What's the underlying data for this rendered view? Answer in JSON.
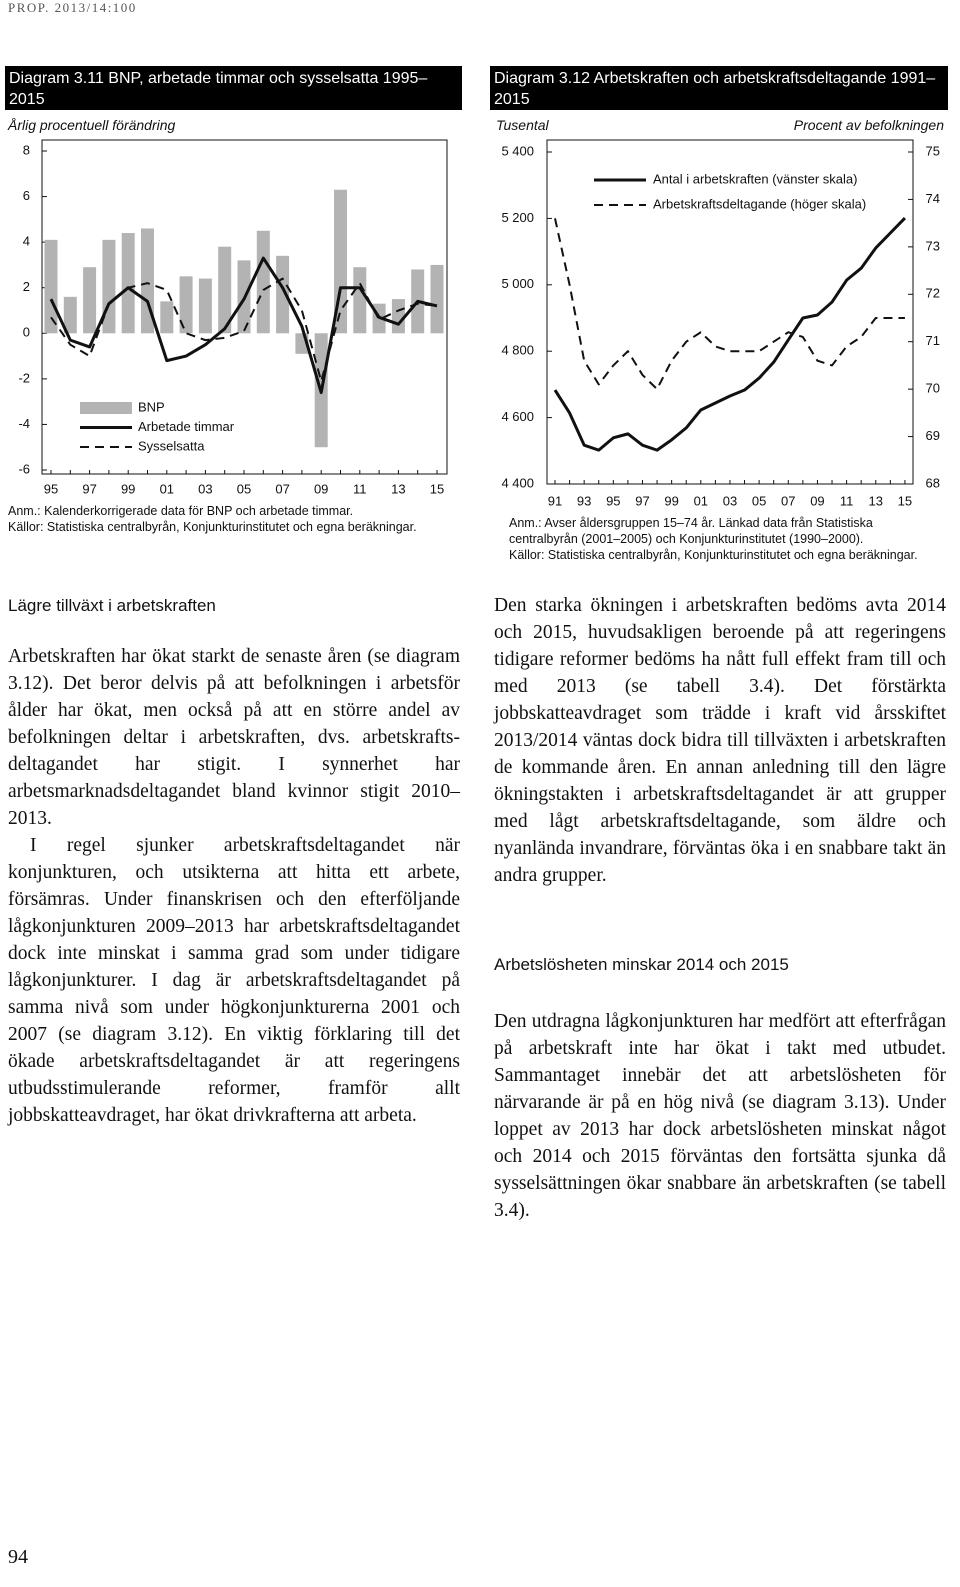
{
  "header": "PROP. 2013/14:100",
  "page_number": "94",
  "chart_data": [
    {
      "type": "bar_line",
      "title": "Diagram 3.11 BNP, arbetade timmar och sysselsatta 1995–2015",
      "subtitle": "Årlig procentuell förändring",
      "categories": [
        "95",
        null,
        "97",
        null,
        "99",
        null,
        "01",
        null,
        "03",
        null,
        "05",
        null,
        "07",
        null,
        "09",
        null,
        "11",
        null,
        "13",
        null,
        "15"
      ],
      "series": [
        {
          "name": "BNP",
          "kind": "bar",
          "color": "#b3b3b3",
          "values": [
            4.1,
            1.6,
            2.9,
            4.1,
            4.4,
            4.6,
            1.4,
            2.5,
            2.4,
            3.8,
            3.2,
            4.5,
            3.4,
            -0.9,
            -5.0,
            6.3,
            2.9,
            1.3,
            1.5,
            2.8,
            3.0
          ]
        },
        {
          "name": "Arbetade timmar",
          "kind": "line",
          "dash": false,
          "color": "#111111",
          "values": [
            1.5,
            -0.3,
            -0.6,
            1.3,
            2.0,
            1.4,
            -1.2,
            -1.0,
            -0.5,
            0.2,
            1.5,
            3.3,
            2.0,
            0.3,
            -2.6,
            2.0,
            2.0,
            0.7,
            0.4,
            1.4,
            1.2
          ]
        },
        {
          "name": "Sysselsatta",
          "kind": "line",
          "dash": true,
          "color": "#111111",
          "values": [
            0.7,
            -0.5,
            -1.0,
            1.3,
            2.0,
            2.2,
            1.9,
            0.0,
            -0.3,
            -0.2,
            0.1,
            1.9,
            2.4,
            1.0,
            -2.1,
            1.0,
            2.2,
            0.6,
            1.0,
            1.3,
            1.2
          ]
        }
      ],
      "ylim": [
        -6,
        8
      ],
      "yticks": [
        -6,
        -4,
        -2,
        0,
        2,
        4,
        6,
        8
      ],
      "legend": "lower left",
      "notes": [
        "Anm.: Kalenderkorrigerade data för BNP och arbetade timmar.",
        "Källor: Statistiska centralbyrån, Konjunkturinstitutet och egna beräkningar."
      ]
    },
    {
      "type": "line",
      "title": "Diagram 3.12 Arbetskraften och arbetskraftsdeltagande 1991–2015",
      "y_label": "Tusental",
      "y2_label": "Procent av befolkningen",
      "categories": [
        "91",
        null,
        "93",
        null,
        "95",
        null,
        "97",
        null,
        "99",
        null,
        "01",
        null,
        "03",
        null,
        "05",
        null,
        "07",
        null,
        "09",
        null,
        "11",
        null,
        "13",
        null,
        "15"
      ],
      "series": [
        {
          "name": "Antal i arbetskraften (vänster skala)",
          "dash": false,
          "color": "#111111",
          "values": [
            4683,
            4614,
            4517,
            4502,
            4539,
            4551,
            4517,
            4502,
            4533,
            4569,
            4623,
            4644,
            4665,
            4683,
            4719,
            4767,
            4834,
            4900,
            4909,
            4948,
            5014,
            5050,
            5111,
            5156,
            5201
          ]
        },
        {
          "name": "Arbetskraftsdeltagande (höger skala)",
          "axis": "y2",
          "dash": true,
          "color": "#111111",
          "values": [
            73.6,
            72.2,
            70.6,
            70.1,
            70.5,
            70.8,
            70.3,
            70.0,
            70.6,
            71.0,
            71.2,
            70.9,
            70.8,
            70.8,
            70.8,
            71.0,
            71.2,
            71.1,
            70.6,
            70.5,
            70.9,
            71.1,
            71.5,
            71.5,
            71.5
          ]
        }
      ],
      "ylim": [
        4400,
        5400
      ],
      "yticks": [
        {
          "value": 4400,
          "label": "4 400"
        },
        {
          "value": 4600,
          "label": "4 600"
        },
        {
          "value": 4800,
          "label": "4 800"
        },
        {
          "value": 5000,
          "label": "5 000"
        },
        {
          "value": 5200,
          "label": "5 200"
        },
        {
          "value": 5400,
          "label": "5 400"
        }
      ],
      "y2lim": [
        68,
        75
      ],
      "y2ticks": [
        68,
        69,
        70,
        71,
        72,
        73,
        74,
        75
      ],
      "legend": "upper left",
      "notes": [
        "Anm.: Avser åldersgruppen 15–74 år. Länkad data från Statistiska centralbyrån (2001–2005) och Konjunkturinstitutet (1990–2000).",
        "Källor: Statistiska centralbyrån, Konjunkturinstitutet och egna beräkningar."
      ]
    }
  ],
  "left_column": {
    "heading": "Lägre tillväxt i arbetskraften",
    "paragraphs": [
      "Arbetskraften har ökat starkt de senaste åren (se diagram 3.12). Det beror delvis på att befolkningen i arbetsför ålder har ökat, men också på att en större andel av befolkningen deltar i arbetskraften, dvs. arbetskrafts­deltagandet har stigit. I synnerhet har arbetsmarknadsdeltagandet bland kvinnor stigit 2010–2013.",
      "I regel sjunker arbetskraftsdeltagandet när konjunkturen, och utsikterna att hitta ett arbete, försämras. Under finanskrisen och den efterföljande lågkonjunkturen 2009–2013 har arbetskraftsdeltagandet dock inte minskat i samma grad som under tidigare lågkonjunkturer. I dag är arbetskraftsdeltagandet på samma nivå som under högkonjunkturerna 2001 och 2007 (se diagram 3.12). En viktig förklaring till det ökade arbetskraftsdeltagandet är att regeringens utbudsstimulerande reformer, framför allt jobbskatteavdraget, har ökat drivkrafterna att arbeta."
    ]
  },
  "right_column": {
    "paragraphs": [
      "Den starka ökningen i arbetskraften bedöms avta 2014 och 2015, huvudsakligen beroende på att regeringens tidigare reformer bedöms ha nått full effekt fram till och med 2013 (se tabell 3.4). Det förstärkta jobbskatteavdraget som trädde i kraft vid årsskiftet 2013/2014 väntas dock bidra till tillväxten i arbetskraften de kommande åren. En annan anledning till den lägre ökningstakten i arbetskraftsdeltagandet är att grupper med lågt arbetskraftsdeltagande, som äldre och nyanlända invandrare, förväntas öka i en snabbare takt än andra grupper."
    ],
    "heading": "Arbetslösheten minskar 2014 och 2015",
    "paragraphs_after": [
      "Den utdragna lågkonjunkturen har medfört att efterfrågan på arbetskraft inte har ökat i takt med utbudet. Sammantaget innebär det att arbetslösheten för närvarande är på en hög nivå (se diagram 3.13). Under loppet av 2013 har dock arbetslösheten minskat något och 2014 och 2015 förväntas den fortsätta sjunka då sysselsättningen ökar snabbare än arbetskraften (se tabell 3.4)."
    ]
  }
}
